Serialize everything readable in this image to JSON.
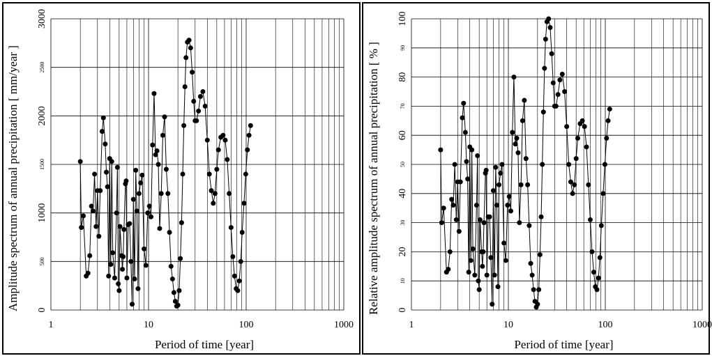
{
  "chart_data": [
    {
      "type": "line",
      "xlog": true,
      "grid": true,
      "color": "#000000",
      "xlabel": "Period of time [year]",
      "ylabel": "Amplitude spectrum of annual precipitation [ mm/year ]",
      "xlim": [
        1,
        1000
      ],
      "xticks": [
        1,
        10,
        100,
        1000
      ],
      "xgrid": [
        2,
        3,
        4,
        5,
        6,
        7,
        8,
        9,
        20,
        30,
        40,
        50,
        60,
        70,
        80,
        90,
        200,
        300,
        400,
        500,
        600,
        700,
        800,
        900
      ],
      "ylim": [
        0,
        3000
      ],
      "yticks": [
        0,
        500,
        1000,
        1500,
        2000,
        2500,
        3000
      ],
      "x": [
        2.0,
        2.05,
        2.15,
        2.3,
        2.4,
        2.5,
        2.6,
        2.7,
        2.8,
        2.9,
        3.0,
        3.1,
        3.2,
        3.35,
        3.45,
        3.6,
        3.7,
        3.8,
        3.9,
        4.0,
        4.1,
        4.2,
        4.3,
        4.5,
        4.7,
        4.8,
        4.9,
        5.0,
        5.1,
        5.3,
        5.4,
        5.5,
        5.6,
        5.8,
        5.9,
        6.0,
        6.2,
        6.4,
        6.6,
        6.8,
        7.0,
        7.2,
        7.4,
        7.6,
        7.8,
        8.0,
        8.3,
        8.6,
        9.0,
        9.4,
        9.8,
        10.2,
        10.6,
        11.0,
        11.4,
        11.8,
        12.2,
        12.6,
        13.0,
        13.5,
        14.0,
        14.6,
        15.2,
        15.8,
        16.4,
        17.0,
        17.6,
        18.2,
        18.8,
        19.4,
        20.0,
        20.6,
        21.2,
        21.8,
        22.4,
        23.0,
        23.6,
        24.2,
        25,
        26,
        27,
        28,
        29,
        30,
        31,
        32.5,
        34,
        36,
        38,
        40,
        42,
        44,
        46,
        48,
        50,
        52,
        55,
        58,
        61,
        64,
        67,
        70,
        73,
        76,
        79,
        82,
        85,
        88,
        91,
        95,
        99,
        103,
        107,
        111
      ],
      "values": [
        1530,
        850,
        970,
        350,
        380,
        560,
        1070,
        1020,
        1400,
        860,
        1230,
        760,
        1230,
        1840,
        1980,
        1710,
        1420,
        1270,
        350,
        1560,
        470,
        1530,
        590,
        330,
        1000,
        1470,
        270,
        200,
        860,
        560,
        420,
        550,
        830,
        1300,
        1330,
        330,
        880,
        890,
        500,
        60,
        1140,
        320,
        1440,
        1020,
        220,
        1200,
        1310,
        1390,
        630,
        460,
        1000,
        1070,
        960,
        1700,
        2230,
        1600,
        1640,
        1500,
        840,
        1200,
        1800,
        1990,
        1450,
        1200,
        800,
        450,
        320,
        180,
        90,
        40,
        50,
        200,
        530,
        900,
        1400,
        1900,
        2300,
        2600,
        2760,
        2780,
        2700,
        2450,
        2150,
        1950,
        1950,
        2050,
        2200,
        2250,
        2100,
        1750,
        1400,
        1230,
        1100,
        1200,
        1450,
        1650,
        1780,
        1800,
        1750,
        1550,
        1200,
        850,
        550,
        350,
        220,
        200,
        300,
        500,
        800,
        1100,
        1400,
        1650,
        1800,
        1900
      ]
    },
    {
      "type": "line",
      "xlog": true,
      "grid": true,
      "color": "#000000",
      "xlabel": "Period of time [year]",
      "ylabel": "Relative amplitude spectrum of annual precipitation [ % ]",
      "xlim": [
        1,
        1000
      ],
      "xticks": [
        1,
        10,
        100,
        1000
      ],
      "xgrid": [
        2,
        3,
        4,
        5,
        6,
        7,
        8,
        9,
        20,
        30,
        40,
        50,
        60,
        70,
        80,
        90,
        200,
        300,
        400,
        500,
        600,
        700,
        800,
        900
      ],
      "ylim": [
        0,
        100
      ],
      "yticks": [
        0,
        10,
        20,
        30,
        40,
        50,
        60,
        70,
        80,
        90,
        100
      ],
      "x": [
        2.0,
        2.05,
        2.15,
        2.3,
        2.4,
        2.5,
        2.6,
        2.7,
        2.8,
        2.9,
        3.0,
        3.1,
        3.2,
        3.35,
        3.45,
        3.6,
        3.7,
        3.8,
        3.9,
        4.0,
        4.1,
        4.2,
        4.3,
        4.5,
        4.7,
        4.8,
        4.9,
        5.0,
        5.1,
        5.3,
        5.4,
        5.5,
        5.6,
        5.8,
        5.9,
        6.0,
        6.2,
        6.4,
        6.6,
        6.8,
        7.0,
        7.2,
        7.4,
        7.6,
        7.8,
        8.0,
        8.3,
        8.6,
        9.0,
        9.4,
        9.8,
        10.2,
        10.6,
        11.0,
        11.4,
        11.8,
        12.2,
        12.6,
        13.0,
        13.5,
        14.0,
        14.6,
        15.2,
        15.8,
        16.4,
        17.0,
        17.6,
        18.2,
        18.8,
        19.4,
        20.0,
        20.6,
        21.2,
        21.8,
        22.4,
        23.0,
        23.6,
        24.2,
        25,
        26,
        27,
        28,
        29,
        30,
        31,
        32.5,
        34,
        36,
        38,
        40,
        42,
        44,
        46,
        48,
        50,
        52,
        55,
        58,
        61,
        64,
        67,
        70,
        73,
        76,
        79,
        82,
        85,
        88,
        91,
        95,
        99,
        103,
        107,
        111
      ],
      "values": [
        55,
        30,
        35,
        13,
        14,
        20,
        38,
        36,
        50,
        31,
        44,
        27,
        44,
        66,
        71,
        61,
        51,
        45,
        13,
        56,
        17,
        55,
        21,
        12,
        36,
        53,
        10,
        7,
        31,
        20,
        15,
        20,
        30,
        47,
        48,
        12,
        32,
        32,
        18,
        2,
        41,
        12,
        49,
        36,
        8,
        43,
        47,
        50,
        23,
        17,
        36,
        39,
        34,
        61,
        80,
        57,
        59,
        54,
        30,
        43,
        65,
        72,
        52,
        43,
        29,
        16,
        12,
        7,
        3,
        1,
        2,
        7,
        19,
        32,
        50,
        68,
        83,
        93,
        99,
        100,
        97,
        88,
        78,
        70,
        70,
        74,
        79,
        81,
        75,
        63,
        50,
        44,
        40,
        43,
        52,
        59,
        64,
        65,
        63,
        56,
        43,
        31,
        20,
        13,
        8,
        7,
        11,
        18,
        29,
        40,
        50,
        59,
        65,
        69
      ]
    }
  ]
}
